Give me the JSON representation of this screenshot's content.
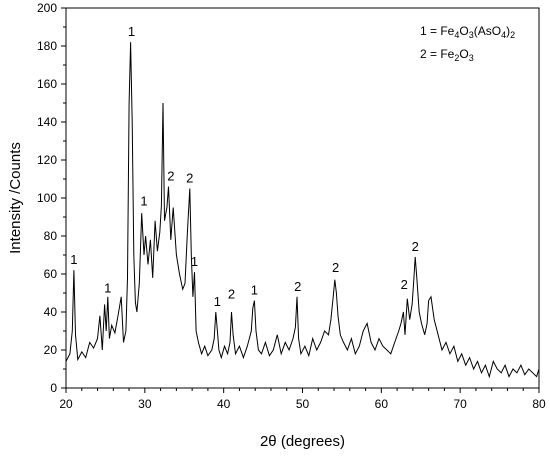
{
  "chart_data": {
    "type": "line",
    "title": "",
    "xlabel": "2θ (degrees)",
    "ylabel": "Intensity /Counts",
    "xlim": [
      20,
      80
    ],
    "ylim": [
      0,
      200
    ],
    "x_ticks": [
      "20",
      "30",
      "40",
      "50",
      "60",
      "70",
      "80"
    ],
    "y_ticks": [
      "0",
      "20",
      "40",
      "60",
      "80",
      "100",
      "120",
      "140",
      "160",
      "180",
      "200"
    ],
    "grid": false,
    "legend_position": "top-right",
    "legend": [
      {
        "key": "1",
        "text": "= Fe",
        "parts": [
          [
            "4",
            true
          ],
          [
            "O",
            false
          ],
          [
            "3",
            true
          ],
          [
            "(AsO",
            false
          ],
          [
            "4",
            true
          ],
          [
            ")",
            false
          ],
          [
            "2",
            true
          ]
        ]
      },
      {
        "key": "2",
        "text": "= Fe",
        "parts": [
          [
            "2",
            true
          ],
          [
            "O",
            false
          ],
          [
            "3",
            true
          ]
        ]
      }
    ],
    "peak_labels": [
      {
        "label": "1",
        "x": 21.0,
        "y": 62
      },
      {
        "label": "1",
        "x": 25.3,
        "y": 47
      },
      {
        "label": "1",
        "x": 28.3,
        "y": 182
      },
      {
        "label": "1",
        "x": 29.9,
        "y": 93
      },
      {
        "label": "2",
        "x": 33.3,
        "y": 106
      },
      {
        "label": "2",
        "x": 35.7,
        "y": 105
      },
      {
        "label": "1",
        "x": 36.3,
        "y": 61
      },
      {
        "label": "1",
        "x": 39.2,
        "y": 40
      },
      {
        "label": "2",
        "x": 41.0,
        "y": 44
      },
      {
        "label": "1",
        "x": 43.9,
        "y": 46
      },
      {
        "label": "2",
        "x": 49.4,
        "y": 48
      },
      {
        "label": "2",
        "x": 54.2,
        "y": 58
      },
      {
        "label": "2",
        "x": 62.9,
        "y": 49
      },
      {
        "label": "2",
        "x": 64.3,
        "y": 69
      }
    ],
    "series": [
      {
        "x": [
          20.0,
          20.5,
          20.8,
          21.0,
          21.2,
          21.5,
          22.0,
          22.5,
          23.0,
          23.5,
          24.0,
          24.3,
          24.6,
          24.9,
          25.1,
          25.3,
          25.5,
          25.8,
          26.2,
          26.6,
          27.0,
          27.3,
          27.6,
          27.8,
          28.0,
          28.2,
          28.4,
          28.6,
          28.8,
          29.0,
          29.3,
          29.6,
          29.9,
          30.1,
          30.4,
          30.7,
          31.0,
          31.3,
          31.6,
          31.9,
          32.1,
          32.3,
          32.5,
          32.8,
          33.0,
          33.3,
          33.6,
          34.0,
          34.4,
          34.8,
          35.1,
          35.4,
          35.7,
          35.9,
          36.1,
          36.3,
          36.5,
          36.8,
          37.2,
          37.6,
          38.0,
          38.5,
          38.8,
          39.0,
          39.2,
          39.4,
          39.7,
          40.1,
          40.5,
          40.8,
          41.0,
          41.2,
          41.5,
          42.0,
          42.5,
          43.0,
          43.5,
          43.7,
          43.9,
          44.1,
          44.4,
          44.8,
          45.3,
          45.8,
          46.3,
          46.8,
          47.3,
          47.8,
          48.3,
          48.8,
          49.1,
          49.3,
          49.5,
          49.8,
          50.3,
          50.8,
          51.3,
          51.8,
          52.3,
          52.8,
          53.3,
          53.6,
          53.9,
          54.1,
          54.3,
          54.5,
          54.8,
          55.2,
          55.7,
          56.2,
          56.7,
          57.2,
          57.7,
          58.2,
          58.7,
          59.2,
          59.7,
          60.2,
          60.7,
          61.2,
          61.7,
          62.2,
          62.5,
          62.8,
          63.0,
          63.3,
          63.6,
          63.9,
          64.1,
          64.3,
          64.5,
          64.8,
          65.1,
          65.5,
          65.8,
          66.0,
          66.3,
          66.7,
          67.2,
          67.7,
          68.2,
          68.7,
          69.2,
          69.7,
          70.2,
          70.7,
          71.2,
          71.7,
          72.2,
          72.7,
          73.2,
          73.7,
          74.2,
          74.7,
          75.2,
          75.7,
          76.2,
          76.7,
          77.2,
          77.7,
          78.2,
          78.7,
          79.2,
          79.7,
          80.0
        ],
        "y": [
          14,
          18,
          30,
          62,
          28,
          15,
          19,
          16,
          24,
          21,
          26,
          38,
          20,
          44,
          30,
          48,
          26,
          33,
          29,
          38,
          48,
          24,
          30,
          58,
          150,
          182,
          140,
          70,
          45,
          40,
          55,
          92,
          70,
          80,
          65,
          78,
          58,
          88,
          72,
          82,
          96,
          150,
          88,
          95,
          106,
          78,
          95,
          70,
          60,
          52,
          55,
          82,
          105,
          70,
          48,
          61,
          30,
          24,
          18,
          22,
          17,
          20,
          26,
          40,
          30,
          20,
          16,
          22,
          18,
          24,
          40,
          28,
          18,
          22,
          16,
          22,
          30,
          42,
          46,
          30,
          20,
          18,
          24,
          17,
          20,
          28,
          18,
          24,
          20,
          26,
          32,
          48,
          26,
          18,
          22,
          17,
          26,
          20,
          24,
          30,
          28,
          36,
          48,
          57,
          50,
          38,
          28,
          24,
          20,
          26,
          18,
          22,
          30,
          34,
          24,
          20,
          26,
          22,
          20,
          18,
          24,
          30,
          34,
          40,
          28,
          47,
          36,
          44,
          56,
          69,
          58,
          40,
          34,
          28,
          34,
          46,
          48,
          36,
          28,
          20,
          24,
          18,
          22,
          14,
          18,
          12,
          16,
          10,
          14,
          8,
          12,
          6,
          14,
          10,
          8,
          12,
          6,
          10,
          8,
          12,
          7,
          10,
          8,
          6,
          10
        ]
      }
    ]
  }
}
